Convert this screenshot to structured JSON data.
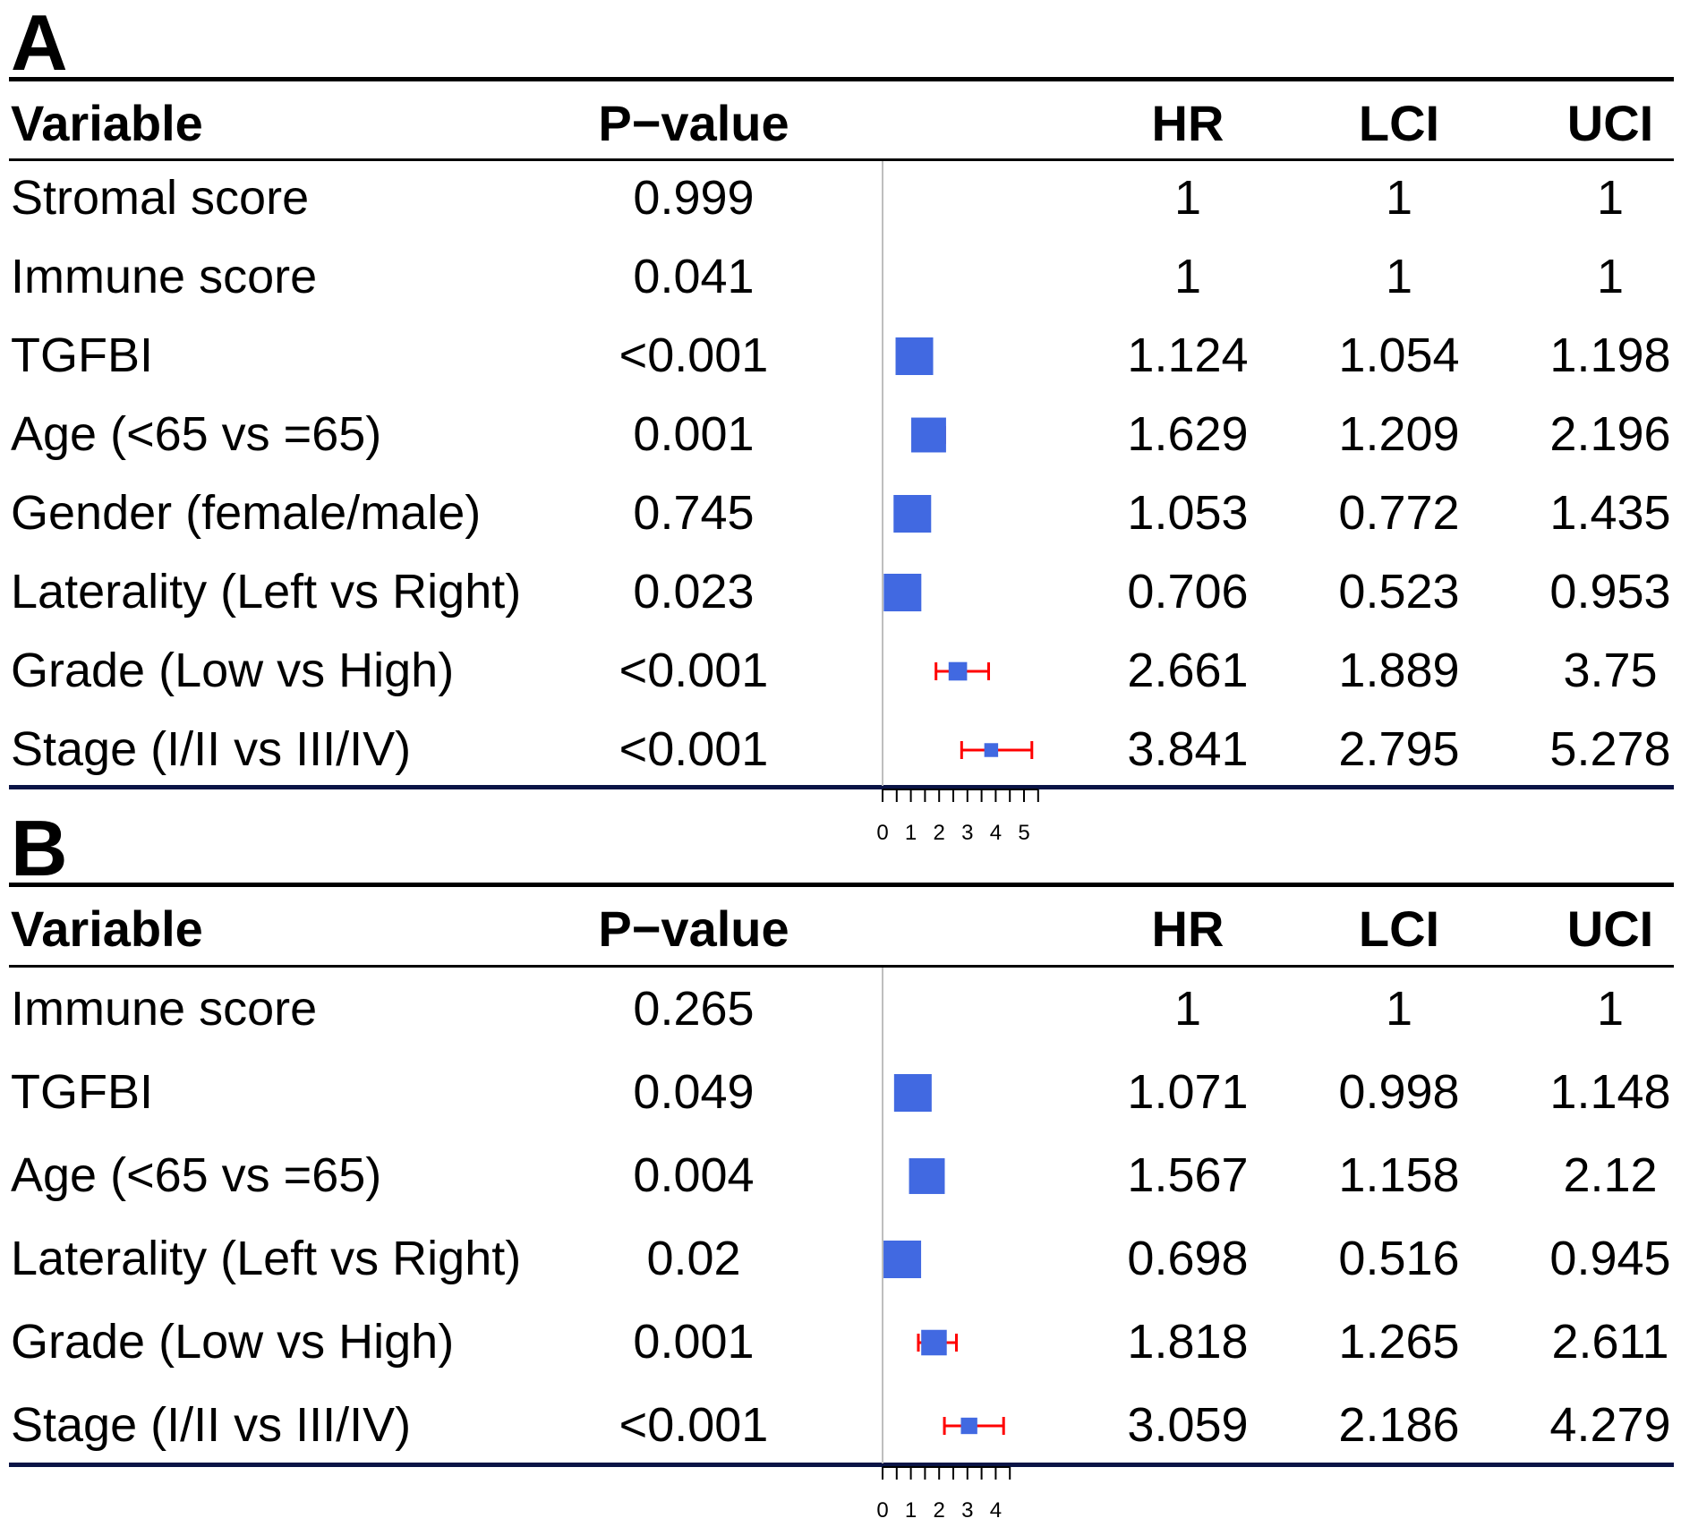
{
  "chart_data": [
    {
      "type": "table",
      "panel": "A",
      "columns": [
        "Variable",
        "P−value",
        "",
        "HR",
        "LCI",
        "UCI"
      ],
      "rows": [
        {
          "variable": "Stromal score",
          "p": "0.999",
          "hr": 1,
          "lci": 1,
          "uci": 1,
          "hr_t": "1",
          "lci_t": "1",
          "uci_t": "1"
        },
        {
          "variable": "Immune score",
          "p": "0.041",
          "hr": 1,
          "lci": 1,
          "uci": 1,
          "hr_t": "1",
          "lci_t": "1",
          "uci_t": "1"
        },
        {
          "variable": "TGFBI",
          "p": "<0.001",
          "hr": 1.124,
          "lci": 1.054,
          "uci": 1.198,
          "hr_t": "1.124",
          "lci_t": "1.054",
          "uci_t": "1.198"
        },
        {
          "variable": "Age (<65 vs =65)",
          "p": "0.001",
          "hr": 1.629,
          "lci": 1.209,
          "uci": 2.196,
          "hr_t": "1.629",
          "lci_t": "1.209",
          "uci_t": "2.196"
        },
        {
          "variable": "Gender (female/male)",
          "p": "0.745",
          "hr": 1.053,
          "lci": 0.772,
          "uci": 1.435,
          "hr_t": "1.053",
          "lci_t": "0.772",
          "uci_t": "1.435"
        },
        {
          "variable": "Laterality (Left vs Right)",
          "p": "0.023",
          "hr": 0.706,
          "lci": 0.523,
          "uci": 0.953,
          "hr_t": "0.706",
          "lci_t": "0.523",
          "uci_t": "0.953"
        },
        {
          "variable": "Grade (Low vs High)",
          "p": "<0.001",
          "hr": 2.661,
          "lci": 1.889,
          "uci": 3.75,
          "hr_t": "2.661",
          "lci_t": "1.889",
          "uci_t": "3.75"
        },
        {
          "variable": "Stage (I/II vs III/IV)",
          "p": "<0.001",
          "hr": 3.841,
          "lci": 2.795,
          "uci": 5.278,
          "hr_t": "3.841",
          "lci_t": "2.795",
          "uci_t": "5.278"
        }
      ],
      "xaxis": {
        "ticks": [
          0,
          1,
          2,
          3,
          4,
          5
        ],
        "minor_step": 0.5,
        "range": [
          0,
          5.5
        ]
      }
    },
    {
      "type": "table",
      "panel": "B",
      "columns": [
        "Variable",
        "P−value",
        "",
        "HR",
        "LCI",
        "UCI"
      ],
      "rows": [
        {
          "variable": "Immune score",
          "p": "0.265",
          "hr": 1,
          "lci": 1,
          "uci": 1,
          "hr_t": "1",
          "lci_t": "1",
          "uci_t": "1"
        },
        {
          "variable": "TGFBI",
          "p": "0.049",
          "hr": 1.071,
          "lci": 0.998,
          "uci": 1.148,
          "hr_t": "1.071",
          "lci_t": "0.998",
          "uci_t": "1.148"
        },
        {
          "variable": "Age (<65 vs =65)",
          "p": "0.004",
          "hr": 1.567,
          "lci": 1.158,
          "uci": 2.12,
          "hr_t": "1.567",
          "lci_t": "1.158",
          "uci_t": "2.12"
        },
        {
          "variable": "Laterality (Left vs Right)",
          "p": "0.02",
          "hr": 0.698,
          "lci": 0.516,
          "uci": 0.945,
          "hr_t": "0.698",
          "lci_t": "0.516",
          "uci_t": "0.945"
        },
        {
          "variable": "Grade (Low vs High)",
          "p": "0.001",
          "hr": 1.818,
          "lci": 1.265,
          "uci": 2.611,
          "hr_t": "1.818",
          "lci_t": "1.265",
          "uci_t": "2.611"
        },
        {
          "variable": "Stage (I/II vs III/IV)",
          "p": "<0.001",
          "hr": 3.059,
          "lci": 2.186,
          "uci": 4.279,
          "hr_t": "3.059",
          "lci_t": "2.186",
          "uci_t": "4.279"
        }
      ],
      "xaxis": {
        "ticks": [
          0,
          1,
          2,
          3,
          4
        ],
        "minor_step": 0.5,
        "range": [
          0,
          4.5
        ]
      }
    }
  ],
  "panels": [
    {
      "label": "A"
    },
    {
      "label": "B"
    }
  ],
  "colors": {
    "box": "#4169e1",
    "ci": "#ff0000",
    "ref_line": "#bebebe",
    "bottom_rule": "#0a1446"
  }
}
